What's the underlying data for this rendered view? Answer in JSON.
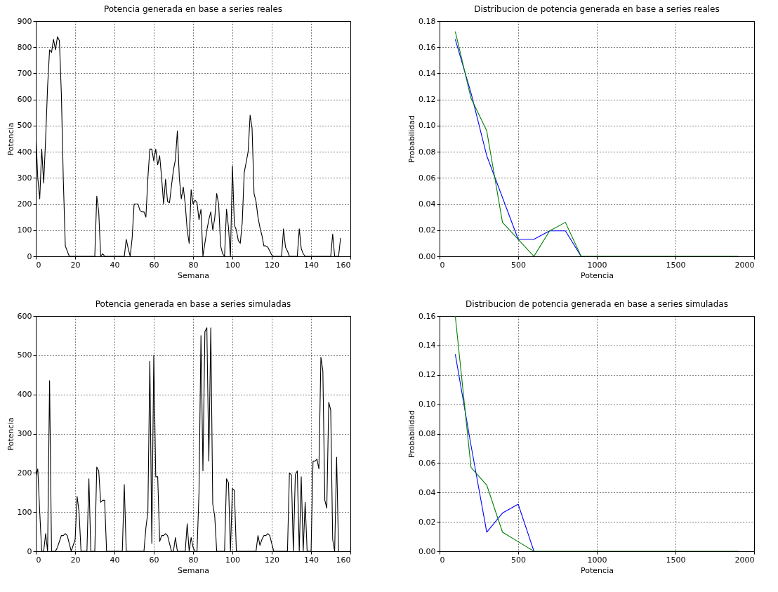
{
  "chart_data": [
    {
      "type": "line",
      "title": "Potencia generada en base a series reales",
      "xlabel": "Semana",
      "ylabel": "Potencia",
      "xlim": [
        0,
        160
      ],
      "xticks": [
        0,
        20,
        40,
        60,
        80,
        100,
        120,
        140,
        160
      ],
      "ylim": [
        0,
        900
      ],
      "yticks": [
        0,
        100,
        200,
        300,
        400,
        500,
        600,
        700,
        800,
        900
      ],
      "grid": true,
      "marker": "none",
      "line_style": "solid",
      "series": [
        {
          "color": "#000000",
          "x": [
            0,
            1,
            2,
            3,
            4,
            5,
            6,
            7,
            8,
            9,
            10,
            11,
            12,
            13,
            14,
            15,
            16,
            17,
            30,
            31,
            32,
            33,
            34,
            35,
            45,
            46,
            47,
            48,
            49,
            50,
            51,
            52,
            53,
            54,
            55,
            56,
            57,
            58,
            59,
            60,
            61,
            62,
            63,
            64,
            65,
            66,
            67,
            68,
            69,
            70,
            71,
            72,
            73,
            74,
            75,
            76,
            77,
            78,
            79,
            80,
            81,
            82,
            83,
            84,
            85,
            86,
            87,
            88,
            89,
            90,
            91,
            92,
            93,
            94,
            95,
            96,
            97,
            98,
            99,
            100,
            101,
            102,
            103,
            104,
            105,
            106,
            107,
            108,
            109,
            110,
            111,
            112,
            113,
            114,
            115,
            116,
            117,
            118,
            119,
            120,
            121,
            125,
            126,
            127,
            128,
            129,
            133,
            134,
            135,
            136,
            137,
            150,
            151,
            152,
            154,
            155
          ],
          "values": [
            470,
            300,
            220,
            410,
            280,
            450,
            650,
            790,
            780,
            830,
            790,
            840,
            825,
            620,
            290,
            40,
            20,
            0,
            0,
            230,
            170,
            0,
            10,
            0,
            0,
            65,
            30,
            0,
            70,
            200,
            200,
            200,
            175,
            170,
            170,
            150,
            300,
            410,
            410,
            365,
            410,
            350,
            385,
            300,
            200,
            295,
            210,
            205,
            270,
            330,
            370,
            480,
            300,
            220,
            265,
            200,
            100,
            50,
            255,
            200,
            215,
            205,
            140,
            180,
            0,
            50,
            100,
            140,
            170,
            100,
            145,
            240,
            200,
            40,
            10,
            0,
            180,
            110,
            0,
            345,
            120,
            100,
            60,
            50,
            130,
            320,
            360,
            400,
            540,
            490,
            240,
            210,
            150,
            110,
            80,
            40,
            40,
            35,
            20,
            5,
            0,
            0,
            105,
            35,
            20,
            0,
            0,
            105,
            30,
            10,
            0,
            0,
            85,
            0,
            0,
            70
          ]
        }
      ]
    },
    {
      "type": "line",
      "title": "Distribucion de potencia generada en base a series reales",
      "xlabel": "Potencia",
      "ylabel": "Probabilidad",
      "xlim": [
        0,
        2000
      ],
      "xticks": [
        0,
        500,
        1000,
        1500,
        2000
      ],
      "ylim": [
        0,
        0.18
      ],
      "yticks": [
        {
          "value": 0,
          "label": "0.00"
        },
        {
          "value": 0.02,
          "label": "0.02"
        },
        {
          "value": 0.04,
          "label": "0.04"
        },
        {
          "value": 0.06,
          "label": "0.06"
        },
        {
          "value": 0.08,
          "label": "0.08"
        },
        {
          "value": 0.1,
          "label": "0.10"
        },
        {
          "value": 0.12,
          "label": "0.12"
        },
        {
          "value": 0.14,
          "label": "0.14"
        },
        {
          "value": 0.16,
          "label": "0.16"
        },
        {
          "value": 0.18,
          "label": "0.18"
        }
      ],
      "grid": true,
      "marker": "none",
      "line_style": "solid",
      "x": [
        100,
        200,
        300,
        400,
        500,
        600,
        700,
        800,
        900,
        1000,
        1100,
        1200,
        1300,
        1400,
        1500,
        1600,
        1700,
        1800,
        1900
      ],
      "series": [
        {
          "color": "#0000ff",
          "values": [
            0.166,
            0.125,
            0.077,
            0.045,
            0.013,
            0.013,
            0.0195,
            0.0195,
            0,
            null,
            null,
            null,
            null,
            null,
            null,
            null,
            null,
            null,
            null
          ]
        },
        {
          "color": "#008000",
          "values": [
            0.172,
            0.121,
            0.096,
            0.026,
            0.013,
            0,
            0.0195,
            0.026,
            0,
            0,
            0,
            0,
            0,
            0,
            0,
            0,
            0,
            0,
            0
          ]
        }
      ]
    },
    {
      "type": "line",
      "title": "Potencia generada en base a series simuladas",
      "xlabel": "Semana",
      "ylabel": "Potencia",
      "xlim": [
        0,
        160
      ],
      "xticks": [
        0,
        20,
        40,
        60,
        80,
        100,
        120,
        140,
        160
      ],
      "ylim": [
        0,
        600
      ],
      "yticks": [
        0,
        100,
        200,
        300,
        400,
        500,
        600
      ],
      "grid": true,
      "marker": "none",
      "line_style": "solid",
      "series": [
        {
          "color": "#000000",
          "x": [
            0,
            1,
            2,
            3,
            4,
            5,
            6,
            7,
            8,
            10,
            11,
            12,
            13,
            14,
            15,
            16,
            17,
            18,
            20,
            21,
            22,
            23,
            26,
            27,
            28,
            30,
            31,
            32,
            33,
            34,
            35,
            36,
            44,
            45,
            46,
            55,
            56,
            57,
            58,
            59,
            60,
            61,
            62,
            63,
            64,
            65,
            66,
            67,
            68,
            69,
            70,
            71,
            72,
            76,
            77,
            78,
            79,
            80,
            81,
            82,
            83,
            84,
            85,
            86,
            87,
            88,
            89,
            90,
            91,
            92,
            96,
            97,
            98,
            99,
            100,
            101,
            102,
            112,
            113,
            114,
            115,
            116,
            117,
            118,
            119,
            120,
            121,
            128,
            129,
            130,
            131,
            132,
            133,
            134,
            135,
            136,
            137,
            138,
            140,
            141,
            142,
            143,
            144,
            145,
            146,
            147,
            148,
            149,
            150,
            151,
            152,
            153,
            154
          ],
          "values": [
            190,
            210,
            100,
            0,
            0,
            45,
            0,
            435,
            0,
            0,
            10,
            25,
            40,
            40,
            45,
            40,
            20,
            0,
            30,
            140,
            100,
            0,
            0,
            185,
            0,
            0,
            215,
            205,
            125,
            130,
            130,
            0,
            0,
            170,
            0,
            0,
            60,
            100,
            485,
            20,
            500,
            190,
            190,
            25,
            40,
            40,
            45,
            40,
            20,
            0,
            0,
            35,
            0,
            0,
            70,
            0,
            35,
            10,
            0,
            0,
            150,
            550,
            205,
            560,
            570,
            230,
            570,
            120,
            90,
            0,
            0,
            185,
            175,
            0,
            160,
            155,
            0,
            0,
            40,
            15,
            30,
            40,
            40,
            45,
            40,
            20,
            0,
            0,
            200,
            195,
            0,
            195,
            205,
            0,
            190,
            0,
            125,
            0,
            0,
            230,
            230,
            235,
            210,
            495,
            460,
            130,
            110,
            380,
            360,
            30,
            0,
            240,
            0
          ]
        }
      ]
    },
    {
      "type": "line",
      "title": "Distribucion de potencia generada en base a series simuladas",
      "xlabel": "Potencia",
      "ylabel": "Probabilidad",
      "xlim": [
        0,
        2000
      ],
      "xticks": [
        0,
        500,
        1000,
        1500,
        2000
      ],
      "ylim": [
        0,
        0.16
      ],
      "yticks": [
        {
          "value": 0,
          "label": "0.00"
        },
        {
          "value": 0.02,
          "label": "0.02"
        },
        {
          "value": 0.04,
          "label": "0.04"
        },
        {
          "value": 0.06,
          "label": "0.06"
        },
        {
          "value": 0.08,
          "label": "0.08"
        },
        {
          "value": 0.1,
          "label": "0.10"
        },
        {
          "value": 0.12,
          "label": "0.12"
        },
        {
          "value": 0.14,
          "label": "0.14"
        },
        {
          "value": 0.16,
          "label": "0.16"
        }
      ],
      "grid": true,
      "marker": "none",
      "line_style": "solid",
      "x": [
        100,
        200,
        300,
        400,
        500,
        600,
        700,
        800,
        900,
        1000,
        1100,
        1200,
        1300,
        1400,
        1500,
        1600,
        1700,
        1800,
        1900
      ],
      "series": [
        {
          "color": "#0000ff",
          "values": [
            0.134,
            0.072,
            0.013,
            0.026,
            0.032,
            0,
            null,
            null,
            null,
            null,
            null,
            null,
            null,
            null,
            null,
            null,
            null,
            null,
            null
          ]
        },
        {
          "color": "#008000",
          "values": [
            0.16,
            0.057,
            0.045,
            0.013,
            0.0065,
            0,
            0,
            0,
            0,
            0,
            0,
            0,
            0,
            0,
            0,
            0,
            0,
            0,
            0
          ]
        }
      ]
    }
  ]
}
